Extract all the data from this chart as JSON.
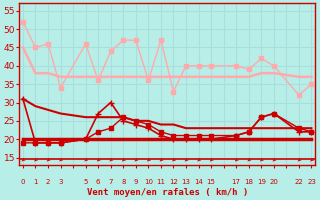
{
  "bg_color": "#b8eee8",
  "grid_color": "#aadddd",
  "xlabel": "Vent moyen/en rafales ( km/h )",
  "xlabel_color": "#cc0000",
  "tick_color": "#cc0000",
  "yticks": [
    15,
    20,
    25,
    30,
    35,
    40,
    45,
    50,
    55
  ],
  "xtick_labels": [
    "0",
    "1",
    "2",
    "3",
    "",
    "5",
    "6",
    "7",
    "8",
    "9",
    "10",
    "11",
    "12",
    "13",
    "14",
    "15",
    "",
    "17",
    "18",
    "19",
    "20",
    "",
    "22",
    "23"
  ],
  "xtick_positions": [
    0,
    1,
    2,
    3,
    4,
    5,
    6,
    7,
    8,
    9,
    10,
    11,
    12,
    13,
    14,
    15,
    16,
    17,
    18,
    19,
    20,
    21,
    22,
    23
  ],
  "ylim": [
    13,
    57
  ],
  "xlim": [
    -0.3,
    23.3
  ],
  "series": [
    {
      "x": [
        0,
        1,
        2,
        3,
        5,
        6,
        7,
        8,
        9,
        10,
        11,
        12,
        13,
        14,
        15,
        17,
        18,
        19,
        20,
        22,
        23
      ],
      "y": [
        52,
        45,
        46,
        34,
        46,
        36,
        44,
        47,
        47,
        36,
        47,
        33,
        40,
        40,
        40,
        40,
        39,
        42,
        40,
        32,
        35
      ],
      "color": "#ffaaaa",
      "lw": 1.0,
      "marker": "s",
      "ms": 2.5,
      "zorder": 3
    },
    {
      "x": [
        0,
        1,
        2,
        3,
        5,
        6,
        7,
        8,
        9,
        10,
        11,
        12,
        13,
        14,
        15,
        17,
        18,
        19,
        20,
        22,
        23
      ],
      "y": [
        45,
        38,
        38,
        37,
        37,
        37,
        37,
        37,
        37,
        37,
        37,
        37,
        37,
        37,
        37,
        37,
        37,
        38,
        38,
        37,
        37
      ],
      "color": "#ffaaaa",
      "lw": 1.8,
      "marker": null,
      "ms": 0,
      "zorder": 2
    },
    {
      "x": [
        0,
        1,
        2,
        3,
        5,
        6,
        7,
        8,
        9,
        10,
        11,
        12,
        13,
        14,
        15,
        17,
        18,
        19,
        20,
        22,
        23
      ],
      "y": [
        31,
        29,
        28,
        27,
        26,
        26,
        26,
        26,
        25,
        25,
        24,
        24,
        23,
        23,
        23,
        23,
        23,
        23,
        23,
        23,
        23
      ],
      "color": "#cc0000",
      "lw": 1.5,
      "marker": null,
      "ms": 0,
      "zorder": 3
    },
    {
      "x": [
        0,
        1,
        2,
        3,
        5,
        6,
        7,
        8,
        9,
        10,
        11,
        12,
        13,
        14,
        15,
        17,
        18,
        19,
        20,
        22,
        23
      ],
      "y": [
        19,
        19,
        19,
        19,
        20,
        22,
        23,
        26,
        25,
        24,
        22,
        21,
        21,
        21,
        21,
        21,
        22,
        26,
        27,
        23,
        22
      ],
      "color": "#cc0000",
      "lw": 1.0,
      "marker": "s",
      "ms": 2.5,
      "zorder": 4
    },
    {
      "x": [
        0,
        1,
        2,
        3,
        4,
        5,
        6,
        7,
        8,
        9,
        10,
        11,
        12,
        13,
        14,
        15,
        17,
        18,
        19,
        20,
        22,
        23
      ],
      "y": [
        20,
        20,
        20,
        20,
        20,
        20,
        20,
        20,
        20,
        20,
        20,
        20,
        20,
        20,
        20,
        20,
        20,
        20,
        20,
        20,
        20,
        20
      ],
      "color": "#cc0000",
      "lw": 2.5,
      "marker": null,
      "ms": 0,
      "zorder": 2
    },
    {
      "x": [
        0,
        1,
        2,
        3,
        5,
        6,
        7,
        8,
        9,
        10,
        11,
        12,
        13,
        14,
        15,
        17,
        18,
        19,
        20,
        22,
        23
      ],
      "y": [
        31,
        19,
        19,
        19,
        20,
        27,
        30,
        25,
        24,
        23,
        21,
        20,
        20,
        20,
        20,
        21,
        22,
        26,
        27,
        22,
        22
      ],
      "color": "#cc0000",
      "lw": 1.2,
      "marker": "+",
      "ms": 4,
      "zorder": 4
    }
  ],
  "arrows_x": [
    0,
    1,
    2,
    3,
    5,
    6,
    7,
    8,
    9,
    10,
    11,
    12,
    13,
    14,
    15,
    17,
    18,
    19,
    20,
    22,
    23
  ]
}
